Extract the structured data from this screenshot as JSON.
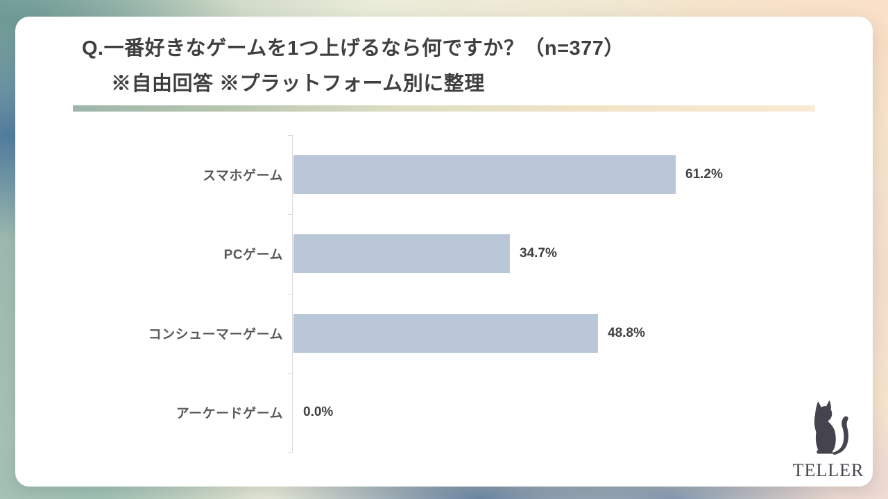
{
  "title": {
    "line1": "Q.一番好きなゲームを1つ上げるなら何ですか？（n=377）",
    "line2": "※自由回答 ※プラットフォーム別に整理"
  },
  "chart_data": {
    "type": "bar",
    "orientation": "horizontal",
    "title": "Q.一番好きなゲームを1つ上げるなら何ですか？（n=377）※自由回答 ※プラットフォーム別に整理",
    "n": 377,
    "categories": [
      "スマホゲーム",
      "PCゲーム",
      "コンシューマーゲーム",
      "アーケードゲーム"
    ],
    "values": [
      61.2,
      34.7,
      48.8,
      0.0
    ],
    "value_labels": [
      "61.2%",
      "34.7%",
      "48.8%",
      "0.0%"
    ],
    "unit": "%",
    "xlim": [
      0,
      80
    ],
    "grid": false,
    "legend": false,
    "bar_color": "#b9c7d8",
    "axis_color": "#d9d9d9",
    "category_label_color": "#595959",
    "value_label_color": "#3f3f3f"
  },
  "accent_rule": {
    "gradient_stops": [
      "#9db6aa",
      "#b7c5ae",
      "#dedfc4",
      "#f0e2c6",
      "#f6e7cd",
      "#f8ead3"
    ]
  },
  "logo": {
    "icon": "cat-silhouette",
    "text": "TELLER",
    "color": "#45444e"
  }
}
